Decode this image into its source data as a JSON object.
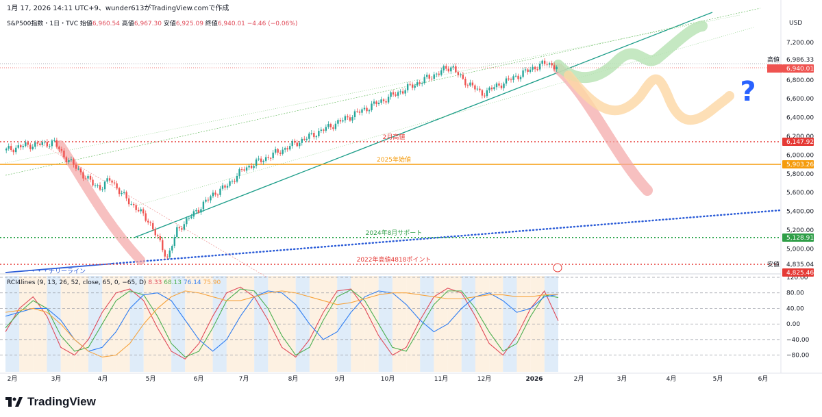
{
  "header": {
    "timestamp": "1月 17, 2026 14:11 UTC+9、wunder613がTradingView.comで作成",
    "symbol": "S&P500指数・1日・TVC",
    "open_label": "始値",
    "open_value": "6,960.54",
    "high_label": "高値",
    "high_value": "6,967.30",
    "low_label": "安値",
    "low_value": "6,925.09",
    "close_label": "終値",
    "close_value": "6,940.01",
    "change": "−4.46 (−0.06%)"
  },
  "currency": "USD",
  "indicator": {
    "label": "RCI4lines (9, 13, 26, 52, close, 65, 0, −65, D)",
    "v1": "8.33",
    "v2": "68.13",
    "v3": "76.14",
    "v4": "75.90"
  },
  "footer": {
    "brand": "TradingView"
  },
  "colors": {
    "up": "#26a69a",
    "down": "#ef5350",
    "orange": "#f59b0c",
    "green_line": "#1e9e8a",
    "blue_line": "#2a5bd7",
    "red_dotted": "#e53935",
    "green_dotted": "#33a852"
  },
  "chart_data": [
    {
      "type": "line",
      "title": "S&P500指数・1日・TVC",
      "ylim": [
        4700,
        7400
      ],
      "y_ticks": [
        "7,200.00",
        "7,000.00",
        "6,800.00",
        "6,600.00",
        "6,400.00",
        "6,200.00",
        "6,000.00",
        "5,800.00",
        "5,600.00",
        "5,400.00",
        "5,200.00",
        "5,000.00"
      ],
      "x_ticks": [
        "2月",
        "3月",
        "4月",
        "5月",
        "6月",
        "7月",
        "8月",
        "9月",
        "10月",
        "11月",
        "12月",
        "2026",
        "2月",
        "3月",
        "4月",
        "5月",
        "6月"
      ],
      "series": [
        {
          "values": [
            6050,
            6080,
            6100,
            6110,
            6120,
            6140,
            6000,
            5900,
            5800,
            5700,
            5650,
            5750,
            5600,
            5500,
            5400,
            5300,
            5100,
            4900,
            5200,
            5300,
            5400,
            5500,
            5600,
            5650,
            5750,
            5850,
            5900,
            5950,
            6000,
            6050,
            6100,
            6150,
            6200,
            6250,
            6300,
            6350,
            6400,
            6450,
            6500,
            6550,
            6600,
            6650,
            6700,
            6750,
            6800,
            6850,
            6900,
            6950,
            6800,
            6750,
            6650,
            6700,
            6750,
            6800,
            6850,
            6900,
            6950,
            6980,
            6940
          ]
        }
      ],
      "price_labels": [
        {
          "text": "高値",
          "value": "6,986.33"
        },
        {
          "text": "SPX",
          "value": "6,940.01"
        },
        {
          "text": "",
          "value": "6,147.92"
        },
        {
          "text": "",
          "value": "5,903.26"
        },
        {
          "text": "",
          "value": "5,128.91"
        },
        {
          "text": "安値",
          "value": "4,835.04"
        },
        {
          "text": "",
          "value": "4,825.46"
        }
      ],
      "annotations": [
        {
          "text": "2月高値",
          "value": 6147.92
        },
        {
          "text": "2025年始値",
          "value": 5903.26
        },
        {
          "text": "2024年8月サポート",
          "value": 5128.91
        },
        {
          "text": "2022年高値4818ポイント",
          "value": 4818
        },
        {
          "text": "・・・・ナリーライン",
          "value": 4800
        },
        {
          "text": "?",
          "value": 6700
        }
      ]
    },
    {
      "type": "line",
      "title": "RCI4lines (9, 13, 26, 52, close, 65, 0, −65, D)",
      "ylim": [
        -100,
        120
      ],
      "y_ticks": [
        "120.00",
        "80.00",
        "40.00",
        "0.00",
        "−40.00",
        "−80.00"
      ],
      "series": [
        {
          "name": "9",
          "values": [
            -20,
            40,
            70,
            20,
            -60,
            -80,
            -40,
            30,
            80,
            90,
            60,
            -10,
            -70,
            -90,
            -50,
            20,
            80,
            95,
            70,
            10,
            -60,
            -85,
            -40,
            30,
            85,
            90,
            40,
            -30,
            -80,
            -60,
            10,
            70,
            92,
            80,
            20,
            -50,
            -80,
            -30,
            40,
            85,
            8
          ]
        },
        {
          "name": "13",
          "values": [
            -10,
            30,
            60,
            40,
            -30,
            -70,
            -60,
            0,
            60,
            85,
            75,
            20,
            -50,
            -85,
            -70,
            -10,
            60,
            90,
            85,
            40,
            -30,
            -80,
            -60,
            10,
            70,
            88,
            60,
            0,
            -60,
            -70,
            -10,
            50,
            85,
            85,
            40,
            -20,
            -70,
            -50,
            20,
            75,
            68
          ]
        },
        {
          "name": "26",
          "values": [
            20,
            30,
            40,
            40,
            10,
            -40,
            -70,
            -60,
            -20,
            40,
            75,
            80,
            60,
            10,
            -40,
            -70,
            -40,
            20,
            70,
            85,
            80,
            50,
            0,
            -40,
            -20,
            30,
            70,
            85,
            80,
            50,
            10,
            -20,
            0,
            40,
            70,
            80,
            60,
            30,
            40,
            70,
            76
          ]
        },
        {
          "name": "52",
          "values": [
            30,
            35,
            40,
            30,
            0,
            -40,
            -70,
            -85,
            -80,
            -50,
            0,
            40,
            70,
            85,
            80,
            70,
            60,
            60,
            70,
            80,
            85,
            80,
            70,
            60,
            50,
            55,
            65,
            75,
            80,
            80,
            75,
            70,
            65,
            65,
            70,
            75,
            75,
            70,
            70,
            75,
            76
          ]
        }
      ]
    }
  ]
}
